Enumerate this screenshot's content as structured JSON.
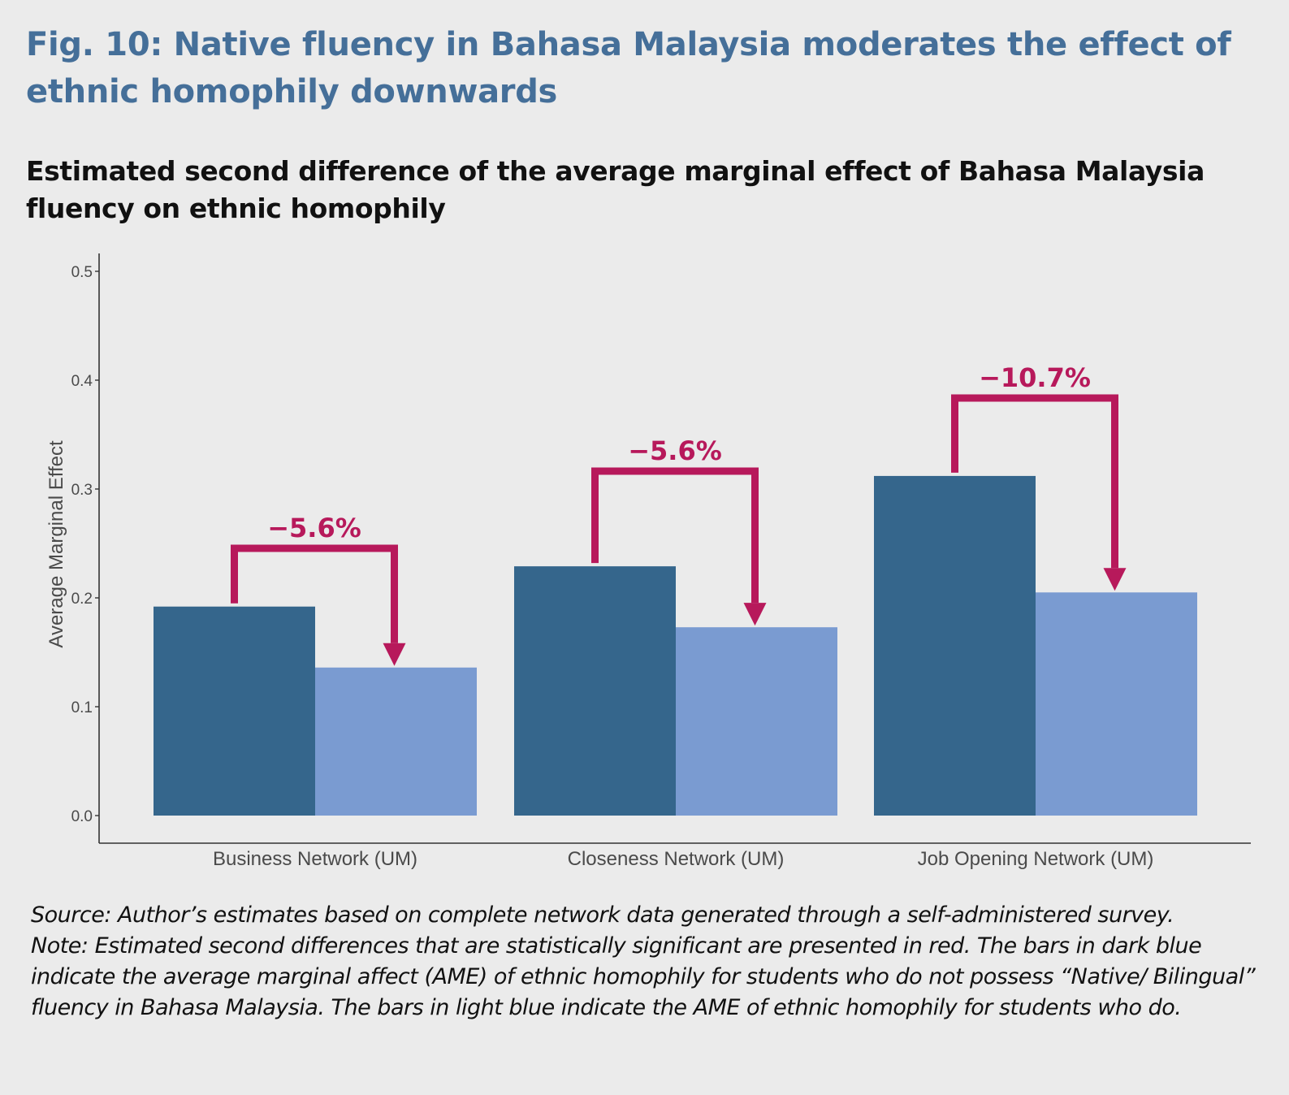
{
  "figure": {
    "title": "Fig. 10: Native fluency in Bahasa Malaysia moderates the effect of ethnic homophily downwards",
    "subtitle": "Estimated second difference of the average marginal effect of Bahasa Malaysia fluency on ethnic homophily",
    "source": "Source: Author’s estimates based on complete network data generated through a self-administered survey.",
    "note": "Note: Estimated second differences that are statistically significant are presented in red. The bars in dark blue indicate the average marginal affect (AME) of ethnic homophily for students who do not possess “Native/ Bilingual” fluency in Bahasa Malaysia. The bars in light blue indicate the AME of ethnic homophily for students who do."
  },
  "chart_data": {
    "type": "bar",
    "ylabel": "Average Marginal Effect",
    "xlabel": "",
    "ylim": [
      0,
      0.5
    ],
    "yticks": [
      "0.0",
      "0.1",
      "0.2",
      "0.3",
      "0.4",
      "0.5"
    ],
    "categories": [
      "Business Network (UM)",
      "Closeness Network (UM)",
      "Job Opening Network (UM)"
    ],
    "series": [
      {
        "values": [
          0.192,
          0.229,
          0.312
        ],
        "color": "#35668c"
      },
      {
        "values": [
          0.136,
          0.173,
          0.205
        ],
        "color": "#7a9bd1"
      }
    ],
    "annotations": [
      "−5.6%",
      "−5.6%",
      "−10.7%"
    ],
    "annotation_color": "#b7195b",
    "grid": false,
    "legend": "none"
  }
}
